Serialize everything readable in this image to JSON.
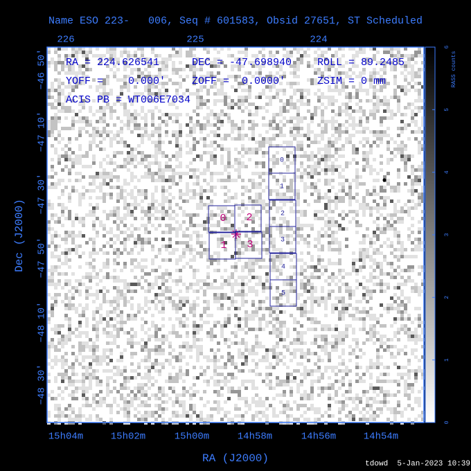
{
  "title": "Name ESO 223-   006, Seq # 601583, Obsid 27651, ST Scheduled",
  "top_axis": {
    "labels": [
      "226",
      "225",
      "224"
    ]
  },
  "left_axis": {
    "title": "Dec (J2000)",
    "labels": [
      "−46 50′",
      "−47 10′",
      "−47 30′",
      "−47 50′",
      "−48 10′",
      "−48 30′"
    ]
  },
  "bottom_axis": {
    "title": "RA (J2000)",
    "labels": [
      "15h04m",
      "15h02m",
      "15h00m",
      "14h58m",
      "14h56m",
      "14h54m"
    ]
  },
  "info": {
    "lines": [
      [
        "RA = 224.626541",
        "DEC = -47.698940",
        "ROLL = 89.2485"
      ],
      [
        "YOFF =    0.000'",
        "ZOFF =  0.0000'",
        "ZSIM = 0 mm"
      ],
      [
        "ACIS PB = WT006E7034"
      ]
    ]
  },
  "acis_i": {
    "chips": [
      "0",
      "2",
      "1",
      "3"
    ]
  },
  "acis_s": {
    "chips": [
      "0",
      "1",
      "2",
      "3",
      "4",
      "5"
    ]
  },
  "colorbar": {
    "label": "RASS counts",
    "ticks": [
      0,
      1,
      2,
      3,
      4,
      5,
      6
    ]
  },
  "footer": "tdowd  5-Jan-2023 10:39"
}
